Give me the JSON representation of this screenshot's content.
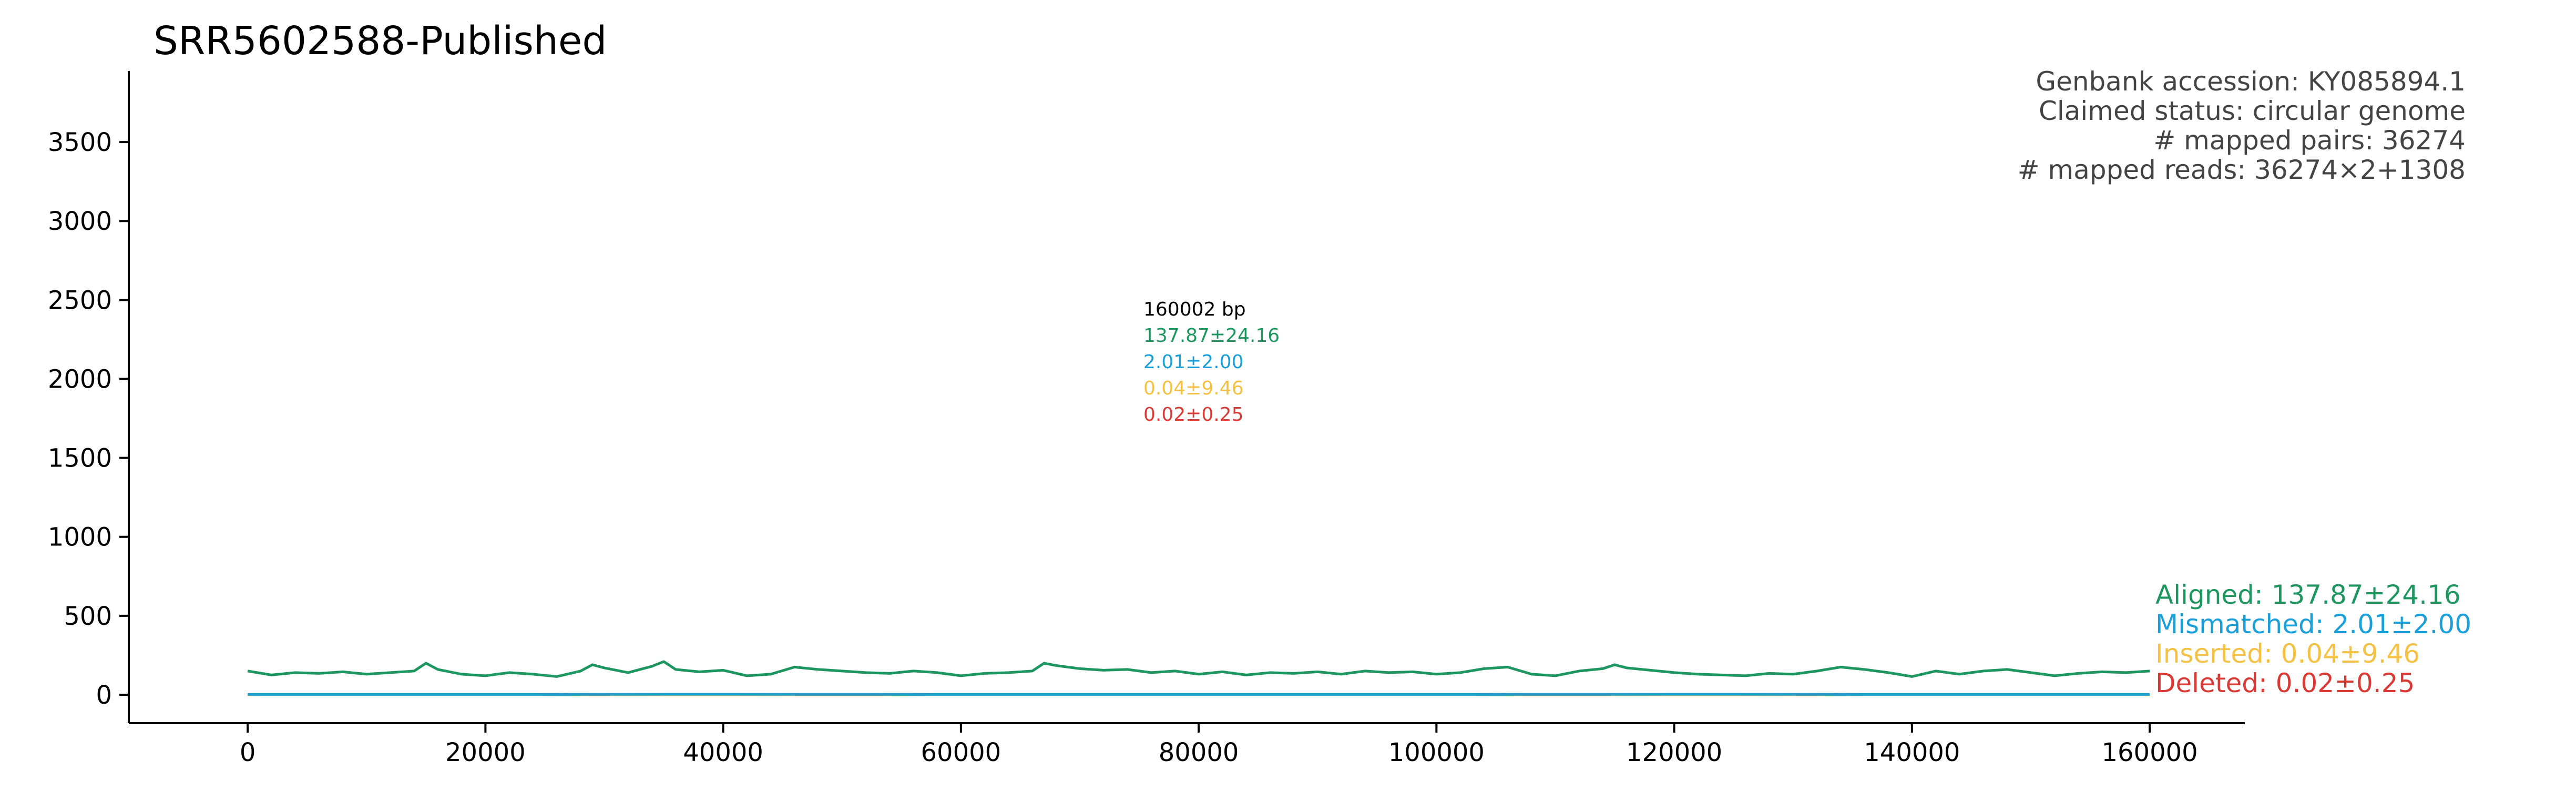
{
  "colors": {
    "aligned": "#1e965f",
    "mismatched": "#1a9fd9",
    "inserted": "#f5c142",
    "deleted": "#d83a35",
    "text_gray": "#444444",
    "axis": "#000000"
  },
  "chart_data": {
    "type": "line",
    "title": "SRR5602588-Published",
    "xlabel": "",
    "ylabel": "",
    "xlim": [
      -10000,
      168000
    ],
    "ylim": [
      -180,
      3950
    ],
    "x_ticks": [
      0,
      20000,
      40000,
      60000,
      80000,
      100000,
      120000,
      140000,
      160000
    ],
    "y_ticks": [
      0,
      500,
      1000,
      1500,
      2000,
      2500,
      3000,
      3500
    ],
    "x_tick_labels": [
      "0",
      "20000",
      "40000",
      "60000",
      "80000",
      "100000",
      "120000",
      "140000",
      "160000"
    ],
    "y_tick_labels": [
      "0",
      "500",
      "1000",
      "1500",
      "2000",
      "2500",
      "3000",
      "3500"
    ],
    "grid": false,
    "legend_placement": "bottom-right",
    "info_lines": [
      "Genbank accession: KY085894.1",
      "Claimed status: circular genome",
      "# mapped pairs: 36274",
      "# mapped reads: 36274×2+1308"
    ],
    "center_annotation": {
      "length": "160002 bp",
      "aligned": "137.87±24.16",
      "mismatched": "2.01±2.00",
      "inserted": "0.04±9.46",
      "deleted": "0.02±0.25"
    },
    "legend": [
      "Aligned: 137.87±24.16",
      "Mismatched: 2.01±2.00",
      "Inserted: 0.04±9.46",
      "Deleted: 0.02±0.25"
    ],
    "series": [
      {
        "name": "Aligned",
        "x": [
          0,
          2000,
          4000,
          6000,
          8000,
          10000,
          12000,
          14000,
          15000,
          16000,
          18000,
          20000,
          22000,
          24000,
          26000,
          28000,
          29000,
          30000,
          32000,
          34000,
          35000,
          36000,
          38000,
          40000,
          42000,
          44000,
          46000,
          48000,
          50000,
          52000,
          54000,
          56000,
          58000,
          60000,
          62000,
          64000,
          66000,
          67000,
          68000,
          70000,
          72000,
          74000,
          76000,
          78000,
          80000,
          82000,
          84000,
          86000,
          88000,
          90000,
          92000,
          94000,
          96000,
          98000,
          100000,
          102000,
          104000,
          106000,
          108000,
          110000,
          112000,
          114000,
          115000,
          116000,
          118000,
          120000,
          122000,
          124000,
          126000,
          128000,
          130000,
          132000,
          134000,
          136000,
          138000,
          140000,
          142000,
          144000,
          146000,
          148000,
          150000,
          152000,
          154000,
          156000,
          158000,
          160000
        ],
        "values": [
          150,
          125,
          140,
          135,
          145,
          130,
          140,
          150,
          200,
          160,
          130,
          120,
          140,
          130,
          115,
          150,
          190,
          170,
          140,
          180,
          210,
          160,
          145,
          155,
          120,
          130,
          175,
          160,
          150,
          140,
          135,
          150,
          140,
          120,
          135,
          140,
          150,
          200,
          185,
          165,
          155,
          160,
          140,
          150,
          130,
          145,
          125,
          140,
          135,
          145,
          130,
          150,
          140,
          145,
          130,
          140,
          165,
          175,
          130,
          120,
          150,
          165,
          190,
          170,
          155,
          140,
          130,
          125,
          120,
          135,
          130,
          150,
          175,
          160,
          140,
          115,
          150,
          130,
          150,
          160,
          140,
          120,
          135,
          145,
          140,
          150
        ]
      },
      {
        "name": "Mismatched",
        "x": [
          0,
          20000,
          40000,
          60000,
          80000,
          100000,
          120000,
          140000,
          160000
        ],
        "values": [
          2,
          2,
          3,
          2,
          2,
          2,
          3,
          2,
          2
        ]
      },
      {
        "name": "Inserted",
        "x": [
          0,
          160000
        ],
        "values": [
          0,
          0
        ]
      },
      {
        "name": "Deleted",
        "x": [
          0,
          20000,
          40000,
          60000,
          80000,
          100000,
          120000,
          140000,
          160000
        ],
        "values": [
          0,
          0,
          0,
          0,
          0,
          0,
          0,
          0,
          0
        ]
      }
    ]
  }
}
